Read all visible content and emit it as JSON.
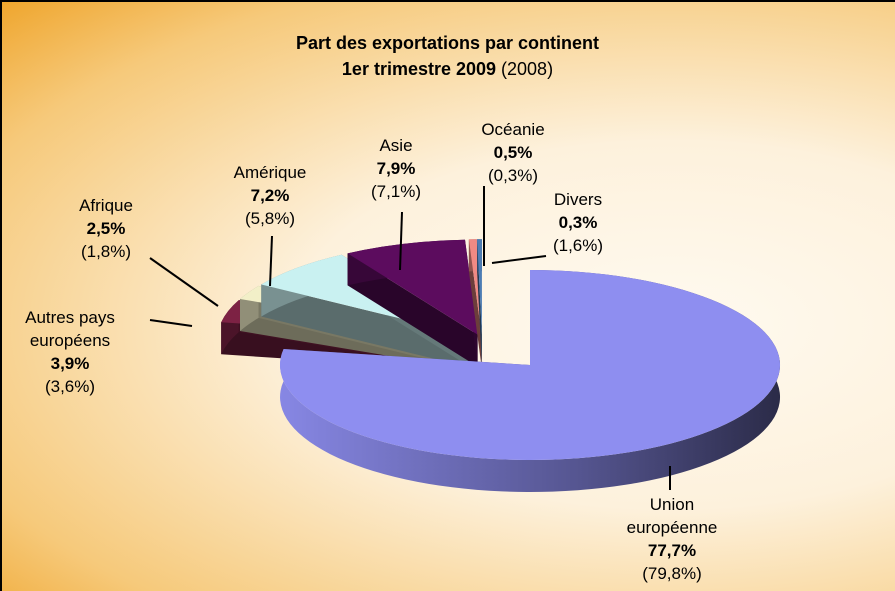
{
  "chart_data": {
    "type": "pie3d",
    "title": "Part des exportations par continent",
    "subtitle": "1er trimestre 2009",
    "subtitle_note": "(2008)",
    "categories": [
      "Union européenne",
      "Autres pays européens",
      "Afrique",
      "Amérique",
      "Asie",
      "Océanie",
      "Divers"
    ],
    "values": [
      77.7,
      3.9,
      2.5,
      7.2,
      7.9,
      0.5,
      0.3
    ],
    "value_labels": [
      "77,7%",
      "3,9%",
      "2,5%",
      "7,2%",
      "7,9%",
      "0,5%",
      "0,3%"
    ],
    "values_2008": [
      79.8,
      3.6,
      1.8,
      5.8,
      7.1,
      0.3,
      1.6
    ],
    "value_labels_2008": [
      "(79,8%)",
      "(3,6%)",
      "(1,8%)",
      "(5,8%)",
      "(7,1%)",
      "(0,3%)",
      "(1,6%)"
    ],
    "colors": [
      "#8e8ef0",
      "#7d2244",
      "#f2efc8",
      "#c9f1f1",
      "#5c0c5e",
      "#f08a84",
      "#4c7cb4"
    ]
  }
}
